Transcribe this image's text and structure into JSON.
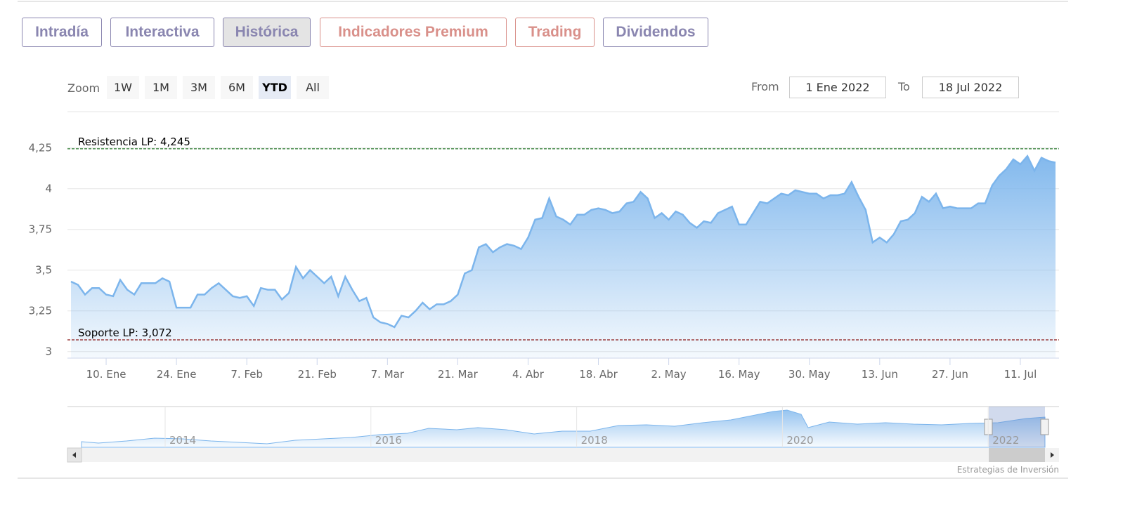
{
  "tabs": [
    "Intradía",
    "Interactiva",
    "Histórica",
    "Indicadores Premium",
    "Trading",
    "Dividendos"
  ],
  "zoom": {
    "label": "Zoom",
    "buttons": [
      "1W",
      "1M",
      "3M",
      "6M",
      "YTD",
      "All"
    ]
  },
  "range": {
    "from_label": "From",
    "from": "1 Ene 2022",
    "to_label": "To",
    "to": "18 Jul 2022"
  },
  "chart_data": {
    "type": "area",
    "color": "#7cb5ec",
    "categories": [
      null,
      null,
      null,
      null,
      null,
      "10. Ene",
      null,
      null,
      null,
      null,
      null,
      null,
      null,
      null,
      null,
      "24. Ene",
      null,
      null,
      null,
      null,
      null,
      null,
      null,
      null,
      null,
      "7. Feb",
      null,
      null,
      null,
      null,
      null,
      null,
      null,
      null,
      null,
      "21. Feb",
      null,
      null,
      null,
      null,
      null,
      null,
      null,
      null,
      null,
      "7. Mar",
      null,
      null,
      null,
      null,
      null,
      null,
      null,
      null,
      null,
      "21. Mar",
      null,
      null,
      null,
      null,
      null,
      null,
      null,
      null,
      null,
      "4. Abr",
      null,
      null,
      null,
      null,
      null,
      null,
      null,
      null,
      null,
      "18. Abr",
      null,
      null,
      null,
      null,
      null,
      null,
      null,
      null,
      null,
      "2. May",
      null,
      null,
      null,
      null,
      null,
      null,
      null,
      null,
      null,
      "16. May",
      null,
      null,
      null,
      null,
      null,
      null,
      null,
      null,
      null,
      "30. May",
      null,
      null,
      null,
      null,
      null,
      null,
      null,
      null,
      null,
      "13. Jun",
      null,
      null,
      null,
      null,
      null,
      null,
      null,
      null,
      null,
      "27. Jun",
      null,
      null,
      null,
      null,
      null,
      null,
      null,
      null,
      null,
      "11. Jul",
      null,
      null,
      null,
      null,
      null
    ],
    "values": [
      3.43,
      3.41,
      3.35,
      3.39,
      3.39,
      3.35,
      3.34,
      3.44,
      3.38,
      3.35,
      3.42,
      3.42,
      3.42,
      3.45,
      3.43,
      3.27,
      3.27,
      3.27,
      3.35,
      3.35,
      3.39,
      3.42,
      3.38,
      3.34,
      3.33,
      3.34,
      3.28,
      3.39,
      3.38,
      3.38,
      3.32,
      3.36,
      3.52,
      3.45,
      3.5,
      3.46,
      3.42,
      3.46,
      3.34,
      3.46,
      3.38,
      3.31,
      3.33,
      3.21,
      3.18,
      3.17,
      3.15,
      3.22,
      3.21,
      3.25,
      3.3,
      3.26,
      3.29,
      3.29,
      3.31,
      3.35,
      3.48,
      3.5,
      3.64,
      3.66,
      3.61,
      3.64,
      3.66,
      3.65,
      3.63,
      3.7,
      3.81,
      3.82,
      3.94,
      3.83,
      3.81,
      3.78,
      3.84,
      3.84,
      3.87,
      3.88,
      3.87,
      3.85,
      3.86,
      3.91,
      3.92,
      3.98,
      3.94,
      3.82,
      3.85,
      3.81,
      3.86,
      3.84,
      3.79,
      3.76,
      3.8,
      3.79,
      3.85,
      3.87,
      3.89,
      3.78,
      3.78,
      3.85,
      3.92,
      3.91,
      3.94,
      3.97,
      3.96,
      3.99,
      3.98,
      3.97,
      3.97,
      3.94,
      3.96,
      3.96,
      3.97,
      4.04,
      3.95,
      3.87,
      3.67,
      3.7,
      3.67,
      3.72,
      3.8,
      3.81,
      3.85,
      3.95,
      3.92,
      3.97,
      3.88,
      3.89,
      3.88,
      3.88,
      3.88,
      3.91,
      3.91,
      4.02,
      4.08,
      4.12,
      4.18,
      4.15,
      4.2,
      4.11,
      4.19,
      4.17,
      4.16
    ],
    "ylim": [
      2.96,
      4.3
    ],
    "yticks": [
      3,
      {
        "value": 3.25,
        "label": "3,25"
      },
      {
        "value": 3.5,
        "label": "3,5"
      },
      {
        "value": 3.75,
        "label": "3,75"
      },
      4,
      {
        "value": 4.25,
        "label": "4,25"
      }
    ],
    "grid": true,
    "plot_lines": [
      {
        "label": "Resistencia LP: 4,245",
        "value": 4.245,
        "color": "#2e7d32"
      },
      {
        "label": "Soporte LP: 3,072",
        "value": 3.072,
        "color": "#8b1a1a"
      }
    ]
  },
  "navigator": {
    "years": [
      "2014",
      "2016",
      "2018",
      "2020",
      "2022"
    ]
  },
  "credits": "Estrategias de Inversión"
}
